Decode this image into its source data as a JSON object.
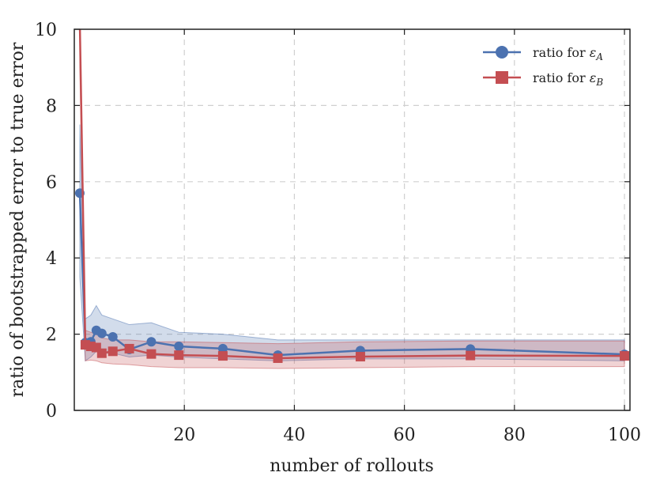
{
  "chart_data": {
    "type": "line",
    "title": "",
    "xlabel": "number of rollouts",
    "ylabel": "ratio of bootstrapped error to true error",
    "xlim": [
      0,
      101
    ],
    "ylim": [
      0,
      10
    ],
    "xticks": [
      20,
      40,
      60,
      80,
      100
    ],
    "xtick_labels": [
      "20",
      "40",
      "60",
      "80",
      "100"
    ],
    "yticks": [
      0,
      2,
      4,
      6,
      8,
      10
    ],
    "ytick_labels": [
      "0",
      "2",
      "4",
      "6",
      "8",
      "10"
    ],
    "grid": true,
    "legend_position": "top-right",
    "series": [
      {
        "name": "ratio for εA",
        "legend_prefix": "ratio for ",
        "legend_symbol": "ε",
        "legend_sub": "A",
        "color": "#4c72b0",
        "marker": "circle",
        "x": [
          1,
          2,
          3,
          4,
          5,
          7,
          10,
          14,
          19,
          27,
          37,
          52,
          72,
          100
        ],
        "values": [
          5.7,
          1.78,
          1.8,
          2.1,
          2.02,
          1.93,
          1.6,
          1.8,
          1.68,
          1.62,
          1.45,
          1.57,
          1.61,
          1.47
        ],
        "band_upper": [
          7.5,
          2.4,
          2.5,
          2.75,
          2.5,
          2.4,
          2.25,
          2.3,
          2.05,
          2.0,
          1.85,
          1.85,
          1.85,
          1.85
        ],
        "band_lower": [
          3.5,
          1.3,
          1.4,
          1.55,
          1.5,
          1.5,
          1.4,
          1.45,
          1.4,
          1.35,
          1.3,
          1.35,
          1.35,
          1.3
        ]
      },
      {
        "name": "ratio for εB",
        "legend_prefix": "ratio for ",
        "legend_symbol": "ε",
        "legend_sub": "B",
        "color": "#c44e52",
        "marker": "square",
        "x": [
          1,
          2,
          3,
          4,
          5,
          7,
          10,
          14,
          19,
          27,
          37,
          52,
          72,
          100
        ],
        "values": [
          10.2,
          1.72,
          1.68,
          1.65,
          1.5,
          1.55,
          1.62,
          1.48,
          1.45,
          1.43,
          1.37,
          1.41,
          1.44,
          1.43
        ],
        "band_upper": [
          10.2,
          2.1,
          2.05,
          2.0,
          1.9,
          1.85,
          1.85,
          1.8,
          1.8,
          1.78,
          1.75,
          1.8,
          1.82,
          1.82
        ],
        "band_lower": [
          9.0,
          1.3,
          1.32,
          1.3,
          1.25,
          1.22,
          1.2,
          1.15,
          1.12,
          1.12,
          1.1,
          1.12,
          1.15,
          1.15
        ]
      }
    ]
  }
}
